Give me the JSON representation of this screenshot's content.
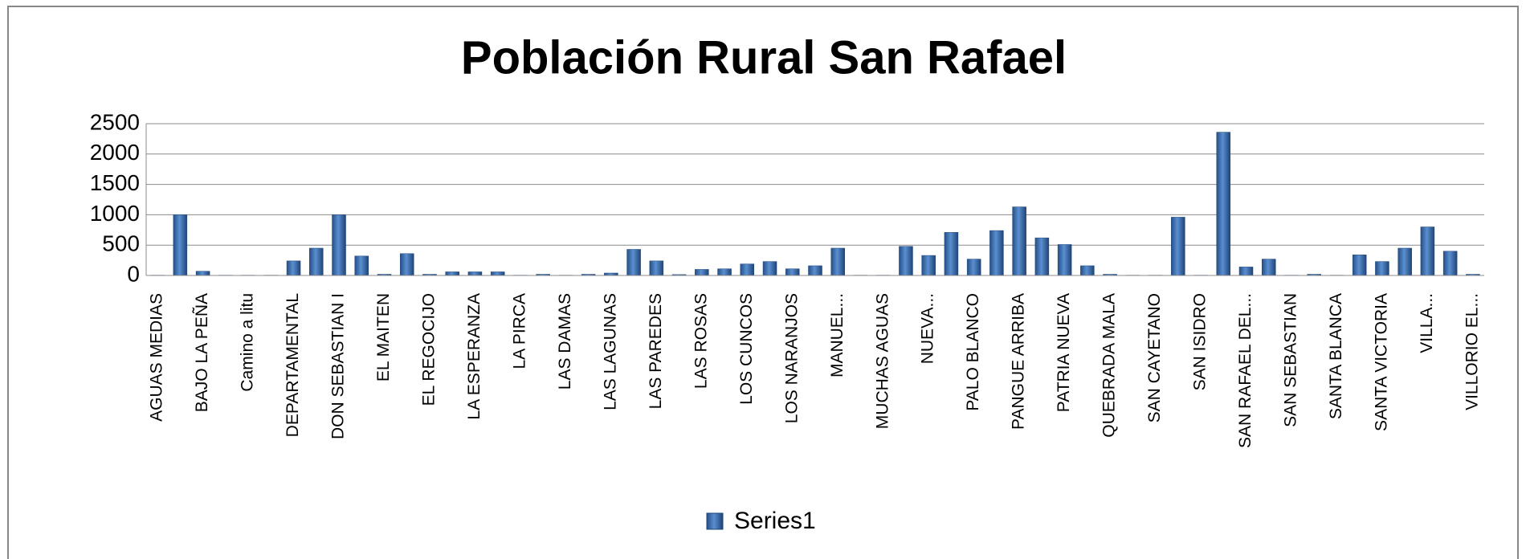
{
  "chart_data": {
    "type": "bar",
    "title": "Población Rural San Rafael",
    "categories": [
      "AGUAS MEDIAS",
      null,
      "BAJO LA PEÑA",
      null,
      "Camino a litu",
      null,
      "DEPARTAMENTAL",
      null,
      "DON SEBASTIAN I",
      null,
      "EL MAITEN",
      null,
      "EL REGOCIJO",
      null,
      "LA ESPERANZA",
      null,
      "LA PIRCA",
      null,
      "LAS DAMAS",
      null,
      "LAS LAGUNAS",
      null,
      "LAS PAREDES",
      null,
      "LAS ROSAS",
      null,
      "LOS CUNCOS",
      null,
      "LOS NARANJOS",
      null,
      "MANUEL...",
      null,
      "MUCHAS AGUAS",
      null,
      "NUEVA...",
      null,
      "PALO BLANCO",
      null,
      "PANGUE ARRIBA",
      null,
      "PATRIA NUEVA",
      null,
      "QUEBRADA MALA",
      null,
      "SAN CAYETANO",
      null,
      "SAN ISIDRO",
      null,
      "SAN RAFAEL DEL...",
      null,
      "SAN SEBASTIAN",
      null,
      "SANTA BLANCA",
      null,
      "SANTA VICTORIA",
      null,
      "VILLA...",
      null,
      "VILLORIO EL..."
    ],
    "series": [
      {
        "name": "Series1",
        "color": "#3a6aa8",
        "values": [
          5,
          1000,
          70,
          5,
          5,
          5,
          240,
          450,
          1000,
          320,
          20,
          360,
          20,
          60,
          60,
          60,
          5,
          20,
          5,
          20,
          40,
          430,
          240,
          15,
          100,
          110,
          190,
          230,
          110,
          160,
          450,
          5,
          5,
          480,
          330,
          710,
          270,
          740,
          1130,
          620,
          510,
          160,
          20,
          5,
          5,
          960,
          5,
          2360,
          140,
          270,
          5,
          20,
          5,
          340,
          230,
          450,
          800,
          400,
          20
        ]
      }
    ],
    "ylim": [
      0,
      2500
    ],
    "yticks": [
      0,
      500,
      1000,
      1500,
      2000,
      2500
    ],
    "grid": true,
    "legend": "bottom"
  }
}
